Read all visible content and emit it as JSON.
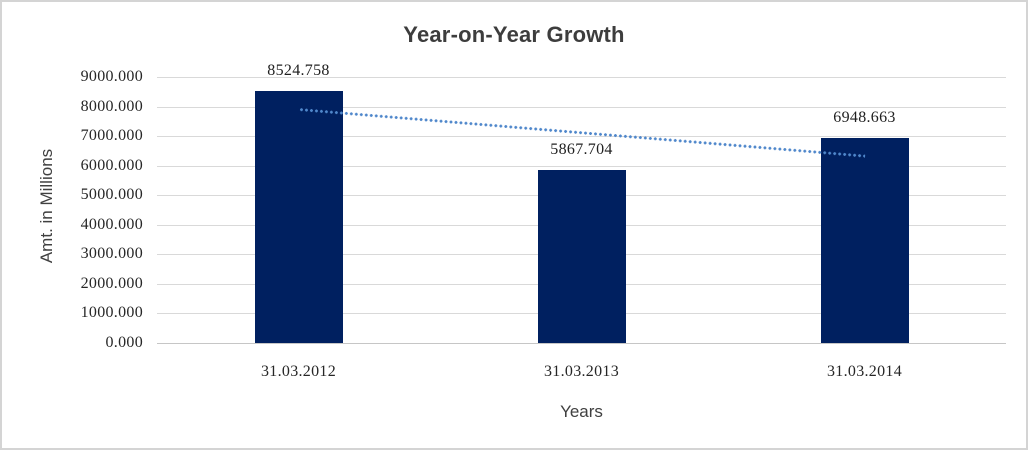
{
  "chart_data": {
    "type": "bar",
    "title": "Year-on-Year Growth",
    "xlabel": "Years",
    "ylabel": "Amt. in Millions",
    "categories": [
      "31.03.2012",
      "31.03.2013",
      "31.03.2014"
    ],
    "values": [
      8524.758,
      5867.704,
      6948.663
    ],
    "value_labels": [
      "8524.758",
      "5867.704",
      "6948.663"
    ],
    "yticks": [
      "9000.000",
      "8000.000",
      "7000.000",
      "6000.000",
      "5000.000",
      "4000.000",
      "3000.000",
      "2000.000",
      "1000.000",
      "0.000"
    ],
    "ylim": [
      0,
      9000
    ],
    "grid": "horizontal",
    "legend_position": "none",
    "bar_color": "#002060",
    "gridline_color": "#d9d9d9",
    "trendline": {
      "type": "linear",
      "style": "dotted",
      "color": "#4f87cb"
    }
  }
}
